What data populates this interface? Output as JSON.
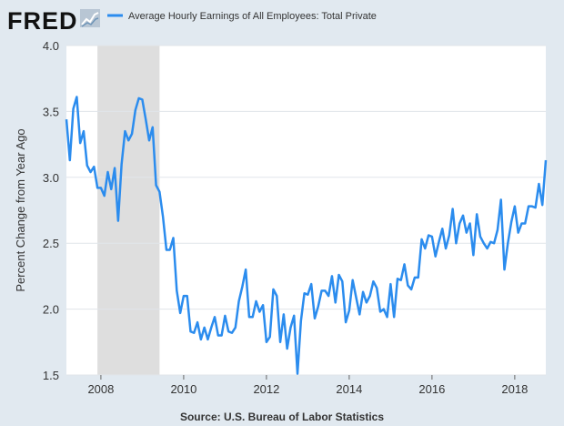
{
  "logo": {
    "text": "FRED",
    "icon": "chart-line-icon"
  },
  "source": "Source: U.S. Bureau of Labor Statistics",
  "colors": {
    "line": "#2b8cee",
    "recession": "#dedede",
    "plot_bg": "#ffffff",
    "page_bg": "#e1e9f0",
    "grid": "#e1e5ea"
  },
  "chart_data": {
    "type": "line",
    "title": "",
    "ylabel": "Percent Change from Year Ago",
    "xlabel": "",
    "xlim": [
      "2007-03-01",
      "2018-10-01"
    ],
    "ylim": [
      1.5,
      4.0
    ],
    "x_ticks": [
      "2008",
      "2010",
      "2012",
      "2014",
      "2016",
      "2018"
    ],
    "y_ticks": [
      "1.5",
      "2.0",
      "2.5",
      "3.0",
      "3.5",
      "4.0"
    ],
    "grid": "horizontal",
    "legend": "top",
    "recession": {
      "start": "2007-12-01",
      "end": "2009-06-01"
    },
    "series": [
      {
        "name": "Average Hourly Earnings of All Employees: Total Private",
        "x": [
          "2007-03",
          "2007-04",
          "2007-05",
          "2007-06",
          "2007-07",
          "2007-08",
          "2007-09",
          "2007-10",
          "2007-11",
          "2007-12",
          "2008-01",
          "2008-02",
          "2008-03",
          "2008-04",
          "2008-05",
          "2008-06",
          "2008-07",
          "2008-08",
          "2008-09",
          "2008-10",
          "2008-11",
          "2008-12",
          "2009-01",
          "2009-02",
          "2009-03",
          "2009-04",
          "2009-05",
          "2009-06",
          "2009-07",
          "2009-08",
          "2009-09",
          "2009-10",
          "2009-11",
          "2009-12",
          "2010-01",
          "2010-02",
          "2010-03",
          "2010-04",
          "2010-05",
          "2010-06",
          "2010-07",
          "2010-08",
          "2010-09",
          "2010-10",
          "2010-11",
          "2010-12",
          "2011-01",
          "2011-02",
          "2011-03",
          "2011-04",
          "2011-05",
          "2011-06",
          "2011-07",
          "2011-08",
          "2011-09",
          "2011-10",
          "2011-11",
          "2011-12",
          "2012-01",
          "2012-02",
          "2012-03",
          "2012-04",
          "2012-05",
          "2012-06",
          "2012-07",
          "2012-08",
          "2012-09",
          "2012-10",
          "2012-11",
          "2012-12",
          "2013-01",
          "2013-02",
          "2013-03",
          "2013-04",
          "2013-05",
          "2013-06",
          "2013-07",
          "2013-08",
          "2013-09",
          "2013-10",
          "2013-11",
          "2013-12",
          "2014-01",
          "2014-02",
          "2014-03",
          "2014-04",
          "2014-05",
          "2014-06",
          "2014-07",
          "2014-08",
          "2014-09",
          "2014-10",
          "2014-11",
          "2014-12",
          "2015-01",
          "2015-02",
          "2015-03",
          "2015-04",
          "2015-05",
          "2015-06",
          "2015-07",
          "2015-08",
          "2015-09",
          "2015-10",
          "2015-11",
          "2015-12",
          "2016-01",
          "2016-02",
          "2016-03",
          "2016-04",
          "2016-05",
          "2016-06",
          "2016-07",
          "2016-08",
          "2016-09",
          "2016-10",
          "2016-11",
          "2016-12",
          "2017-01",
          "2017-02",
          "2017-03",
          "2017-04",
          "2017-05",
          "2017-06",
          "2017-07",
          "2017-08",
          "2017-09",
          "2017-10",
          "2017-11",
          "2017-12",
          "2018-01",
          "2018-02",
          "2018-03",
          "2018-04",
          "2018-05",
          "2018-06",
          "2018-07",
          "2018-08",
          "2018-09",
          "2018-10"
        ],
        "values": [
          3.44,
          3.13,
          3.52,
          3.61,
          3.26,
          3.35,
          3.09,
          3.04,
          3.08,
          2.92,
          2.92,
          2.86,
          3.04,
          2.91,
          3.07,
          2.67,
          3.1,
          3.35,
          3.28,
          3.33,
          3.51,
          3.6,
          3.59,
          3.44,
          3.28,
          3.38,
          2.94,
          2.89,
          2.7,
          2.45,
          2.45,
          2.54,
          2.14,
          1.97,
          2.1,
          2.1,
          1.83,
          1.82,
          1.9,
          1.77,
          1.86,
          1.77,
          1.86,
          1.94,
          1.8,
          1.8,
          1.95,
          1.83,
          1.82,
          1.86,
          2.06,
          2.17,
          2.3,
          1.94,
          1.94,
          2.06,
          1.98,
          2.03,
          1.75,
          1.79,
          2.15,
          2.1,
          1.75,
          1.96,
          1.7,
          1.86,
          1.95,
          1.51,
          1.91,
          2.12,
          2.11,
          2.19,
          1.93,
          2.02,
          2.14,
          2.14,
          2.1,
          2.25,
          2.05,
          2.26,
          2.21,
          1.9,
          1.99,
          2.22,
          2.09,
          1.96,
          2.13,
          2.05,
          2.1,
          2.21,
          2.16,
          1.98,
          2.0,
          1.94,
          2.19,
          1.94,
          2.23,
          2.22,
          2.34,
          2.18,
          2.15,
          2.24,
          2.24,
          2.53,
          2.46,
          2.56,
          2.55,
          2.4,
          2.51,
          2.61,
          2.46,
          2.56,
          2.76,
          2.5,
          2.65,
          2.71,
          2.58,
          2.65,
          2.41,
          2.72,
          2.55,
          2.5,
          2.46,
          2.51,
          2.5,
          2.6,
          2.83,
          2.3,
          2.5,
          2.66,
          2.78,
          2.58,
          2.65,
          2.65,
          2.78,
          2.78,
          2.77,
          2.95,
          2.79,
          3.13
        ]
      }
    ]
  }
}
